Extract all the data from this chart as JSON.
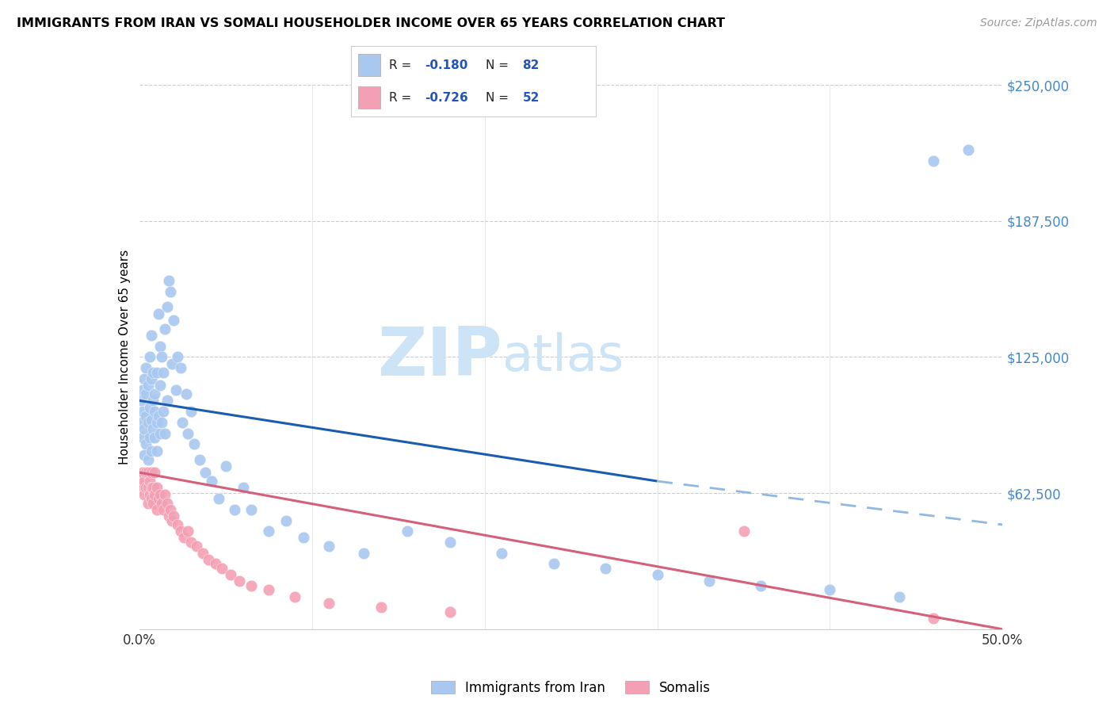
{
  "title": "IMMIGRANTS FROM IRAN VS SOMALI HOUSEHOLDER INCOME OVER 65 YEARS CORRELATION CHART",
  "source": "Source: ZipAtlas.com",
  "ylabel": "Householder Income Over 65 years",
  "legend_iran": "Immigrants from Iran",
  "legend_somali": "Somalis",
  "iran_R": "-0.180",
  "iran_N": "82",
  "somali_R": "-0.726",
  "somali_N": "52",
  "yticks": [
    0,
    62500,
    125000,
    187500,
    250000
  ],
  "ytick_labels": [
    "",
    "$62,500",
    "$125,000",
    "$187,500",
    "$250,000"
  ],
  "xticks": [
    0.0,
    0.1,
    0.2,
    0.3,
    0.4,
    0.5
  ],
  "xmin": 0.0,
  "xmax": 0.5,
  "ymin": 0,
  "ymax": 250000,
  "iran_color": "#a8c8f0",
  "somali_color": "#f4a0b4",
  "iran_line_color": "#1a5cb0",
  "somali_line_color": "#d4607a",
  "iran_dash_color": "#90b8e0",
  "watermark_zip": "ZIP",
  "watermark_atlas": "atlas",
  "watermark_color": "#cce4f5",
  "iran_scatter_x": [
    0.001,
    0.001,
    0.002,
    0.002,
    0.002,
    0.003,
    0.003,
    0.003,
    0.004,
    0.004,
    0.004,
    0.004,
    0.005,
    0.005,
    0.005,
    0.006,
    0.006,
    0.006,
    0.006,
    0.007,
    0.007,
    0.007,
    0.007,
    0.008,
    0.008,
    0.008,
    0.009,
    0.009,
    0.009,
    0.01,
    0.01,
    0.01,
    0.011,
    0.011,
    0.012,
    0.012,
    0.012,
    0.013,
    0.013,
    0.014,
    0.014,
    0.015,
    0.015,
    0.016,
    0.016,
    0.017,
    0.018,
    0.019,
    0.02,
    0.021,
    0.022,
    0.024,
    0.025,
    0.027,
    0.028,
    0.03,
    0.032,
    0.035,
    0.038,
    0.042,
    0.046,
    0.05,
    0.055,
    0.06,
    0.065,
    0.075,
    0.085,
    0.095,
    0.11,
    0.13,
    0.155,
    0.18,
    0.21,
    0.24,
    0.27,
    0.3,
    0.33,
    0.36,
    0.4,
    0.44,
    0.46,
    0.48
  ],
  "iran_scatter_y": [
    95000,
    105000,
    88000,
    110000,
    100000,
    92000,
    115000,
    80000,
    108000,
    98000,
    120000,
    85000,
    112000,
    95000,
    78000,
    102000,
    125000,
    88000,
    72000,
    115000,
    96000,
    82000,
    135000,
    105000,
    92000,
    118000,
    108000,
    88000,
    100000,
    95000,
    82000,
    118000,
    145000,
    98000,
    130000,
    112000,
    90000,
    125000,
    95000,
    118000,
    100000,
    138000,
    90000,
    148000,
    105000,
    160000,
    155000,
    122000,
    142000,
    110000,
    125000,
    120000,
    95000,
    108000,
    90000,
    100000,
    85000,
    78000,
    72000,
    68000,
    60000,
    75000,
    55000,
    65000,
    55000,
    45000,
    50000,
    42000,
    38000,
    35000,
    45000,
    40000,
    35000,
    30000,
    28000,
    25000,
    22000,
    20000,
    18000,
    15000,
    215000,
    220000
  ],
  "somali_scatter_x": [
    0.001,
    0.001,
    0.002,
    0.002,
    0.003,
    0.003,
    0.004,
    0.004,
    0.005,
    0.005,
    0.005,
    0.006,
    0.006,
    0.007,
    0.007,
    0.007,
    0.008,
    0.008,
    0.009,
    0.009,
    0.01,
    0.01,
    0.011,
    0.012,
    0.013,
    0.014,
    0.015,
    0.016,
    0.017,
    0.018,
    0.019,
    0.02,
    0.022,
    0.024,
    0.026,
    0.028,
    0.03,
    0.033,
    0.037,
    0.04,
    0.044,
    0.048,
    0.053,
    0.058,
    0.065,
    0.075,
    0.09,
    0.11,
    0.14,
    0.18,
    0.35,
    0.46
  ],
  "somali_scatter_y": [
    70000,
    68000,
    72000,
    65000,
    68000,
    62000,
    65000,
    72000,
    65000,
    58000,
    72000,
    62000,
    68000,
    65000,
    60000,
    72000,
    65000,
    58000,
    62000,
    72000,
    65000,
    55000,
    60000,
    62000,
    58000,
    55000,
    62000,
    58000,
    52000,
    55000,
    50000,
    52000,
    48000,
    45000,
    42000,
    45000,
    40000,
    38000,
    35000,
    32000,
    30000,
    28000,
    25000,
    22000,
    20000,
    18000,
    15000,
    12000,
    10000,
    8000,
    45000,
    5000
  ]
}
